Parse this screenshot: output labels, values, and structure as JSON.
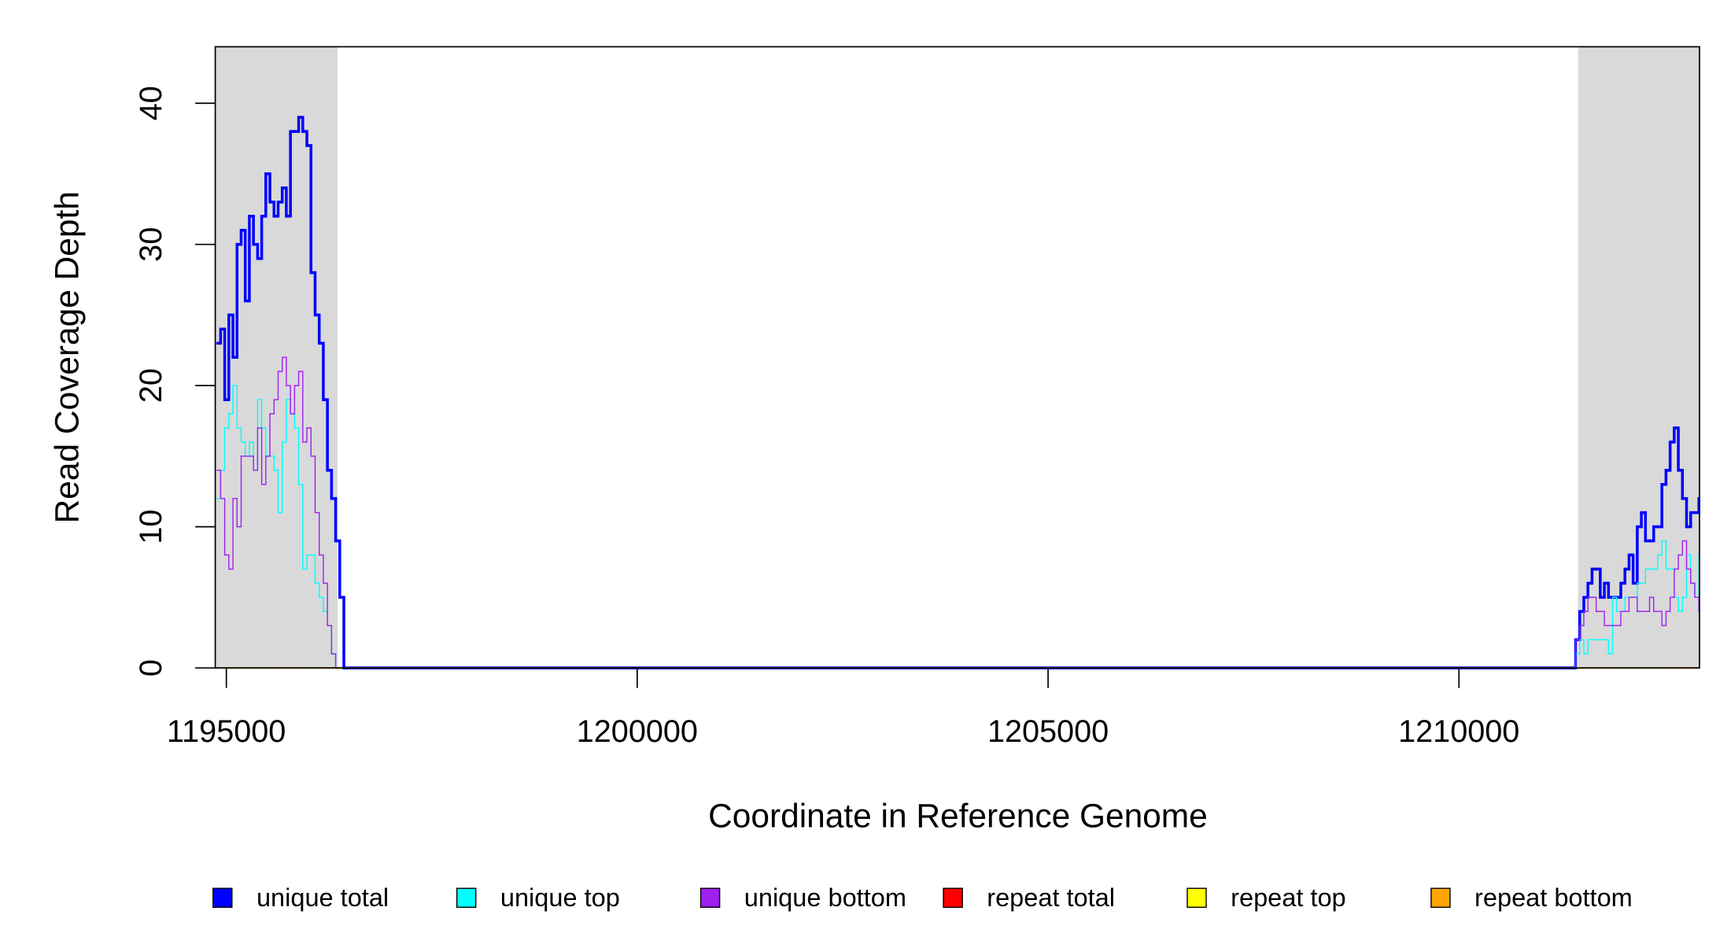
{
  "chart_data": {
    "type": "step-line",
    "xlabel": "Coordinate in Reference Genome",
    "ylabel": "Read Coverage Depth",
    "xlim": [
      1194865,
      1212927
    ],
    "ylim": [
      0,
      44
    ],
    "xticks": [
      1195000,
      1200000,
      1205000,
      1210000
    ],
    "yticks": [
      0,
      10,
      20,
      30,
      40
    ],
    "shaded_ranges": [
      [
        1194865,
        1196355
      ],
      [
        1211450,
        1212927
      ]
    ],
    "shade_color": "#d9d9d9",
    "legend": "bottom",
    "x": [
      1194880,
      1194930,
      1194980,
      1195030,
      1195080,
      1195130,
      1195180,
      1195230,
      1195280,
      1195330,
      1195380,
      1195430,
      1195480,
      1195530,
      1195580,
      1195630,
      1195680,
      1195730,
      1195780,
      1195830,
      1195880,
      1195930,
      1195980,
      1196030,
      1196080,
      1196130,
      1196180,
      1196230,
      1196280,
      1196330,
      1196380,
      1196430,
      1211400,
      1211420,
      1211470,
      1211520,
      1211570,
      1211620,
      1211670,
      1211720,
      1211770,
      1211820,
      1211870,
      1211920,
      1211970,
      1212020,
      1212070,
      1212120,
      1212170,
      1212220,
      1212270,
      1212320,
      1212370,
      1212420,
      1212470,
      1212520,
      1212570,
      1212620,
      1212670,
      1212720,
      1212770,
      1212820,
      1212870,
      1212920
    ],
    "series": [
      {
        "name": "unique total",
        "color": "#0000ff",
        "width": 2.5,
        "values": [
          23,
          24,
          19,
          25,
          22,
          30,
          31,
          26,
          32,
          30,
          29,
          32,
          35,
          33,
          32,
          33,
          34,
          32,
          38,
          38,
          39,
          38,
          37,
          28,
          25,
          23,
          19,
          14,
          12,
          9,
          5,
          0,
          0,
          2,
          4,
          5,
          6,
          7,
          7,
          5,
          6,
          5,
          5,
          5,
          6,
          7,
          8,
          6,
          10,
          11,
          9,
          9,
          10,
          10,
          13,
          14,
          16,
          17,
          14,
          12,
          10,
          11,
          11,
          12
        ]
      },
      {
        "name": "unique top",
        "color": "#00ffff",
        "width": 1,
        "values": [
          12,
          14,
          17,
          18,
          20,
          17,
          16,
          15,
          16,
          14,
          19,
          17,
          15,
          15,
          14,
          11,
          16,
          19,
          18,
          17,
          13,
          7,
          8,
          8,
          6,
          5,
          4,
          3,
          1,
          0,
          0,
          0,
          0,
          1,
          2,
          1,
          2,
          2,
          2,
          2,
          2,
          1,
          5,
          4,
          4,
          5,
          5,
          5,
          6,
          6,
          7,
          7,
          7,
          8,
          9,
          7,
          7,
          5,
          4,
          5,
          8,
          6,
          5,
          8
        ]
      },
      {
        "name": "unique bottom",
        "color": "#a020f0",
        "width": 1,
        "values": [
          14,
          12,
          8,
          7,
          12,
          10,
          15,
          15,
          15,
          14,
          17,
          13,
          15,
          18,
          19,
          21,
          22,
          20,
          18,
          20,
          21,
          16,
          17,
          15,
          11,
          8,
          6,
          3,
          1,
          0,
          0,
          0,
          0,
          2,
          3,
          4,
          5,
          5,
          4,
          4,
          3,
          3,
          3,
          3,
          4,
          4,
          5,
          5,
          4,
          4,
          4,
          5,
          4,
          4,
          3,
          4,
          5,
          7,
          8,
          9,
          7,
          6,
          5,
          4
        ]
      },
      {
        "name": "repeat total",
        "color": "#ff0000",
        "width": 1,
        "values": [
          0,
          0,
          0,
          0,
          0,
          0,
          0,
          0,
          0,
          0,
          0,
          0,
          0,
          0,
          0,
          0,
          0,
          0,
          0,
          0,
          0,
          0,
          0,
          0,
          0,
          0,
          0,
          0,
          0,
          0,
          0,
          0,
          0,
          0,
          0,
          0,
          0,
          0,
          0,
          0,
          0,
          0,
          0,
          0,
          0,
          0,
          0,
          0,
          0,
          0,
          0,
          0,
          0,
          0,
          0,
          0,
          0,
          0,
          0,
          0,
          0,
          0,
          0,
          0
        ]
      },
      {
        "name": "repeat top",
        "color": "#ffff00",
        "width": 1,
        "values": [
          0,
          0,
          0,
          0,
          0,
          0,
          0,
          0,
          0,
          0,
          0,
          0,
          0,
          0,
          0,
          0,
          0,
          0,
          0,
          0,
          0,
          0,
          0,
          0,
          0,
          0,
          0,
          0,
          0,
          0,
          0,
          0,
          0,
          0,
          0,
          0,
          0,
          0,
          0,
          0,
          0,
          0,
          0,
          0,
          0,
          0,
          0,
          0,
          0,
          0,
          0,
          0,
          0,
          0,
          0,
          0,
          0,
          0,
          0,
          0,
          0,
          0,
          0,
          0
        ]
      },
      {
        "name": "repeat bottom",
        "color": "#ffa500",
        "width": 1,
        "values": [
          0,
          0,
          0,
          0,
          0,
          0,
          0,
          0,
          0,
          0,
          0,
          0,
          0,
          0,
          0,
          0,
          0,
          0,
          0,
          0,
          0,
          0,
          0,
          0,
          0,
          0,
          0,
          0,
          0,
          0,
          0,
          0,
          0,
          0,
          0,
          0,
          0,
          0,
          0,
          0,
          0,
          0,
          0,
          0,
          0,
          0,
          0,
          0,
          0,
          0,
          0,
          0,
          0,
          0,
          0,
          0,
          0,
          0,
          0,
          0,
          0,
          0,
          0,
          0
        ]
      }
    ]
  }
}
